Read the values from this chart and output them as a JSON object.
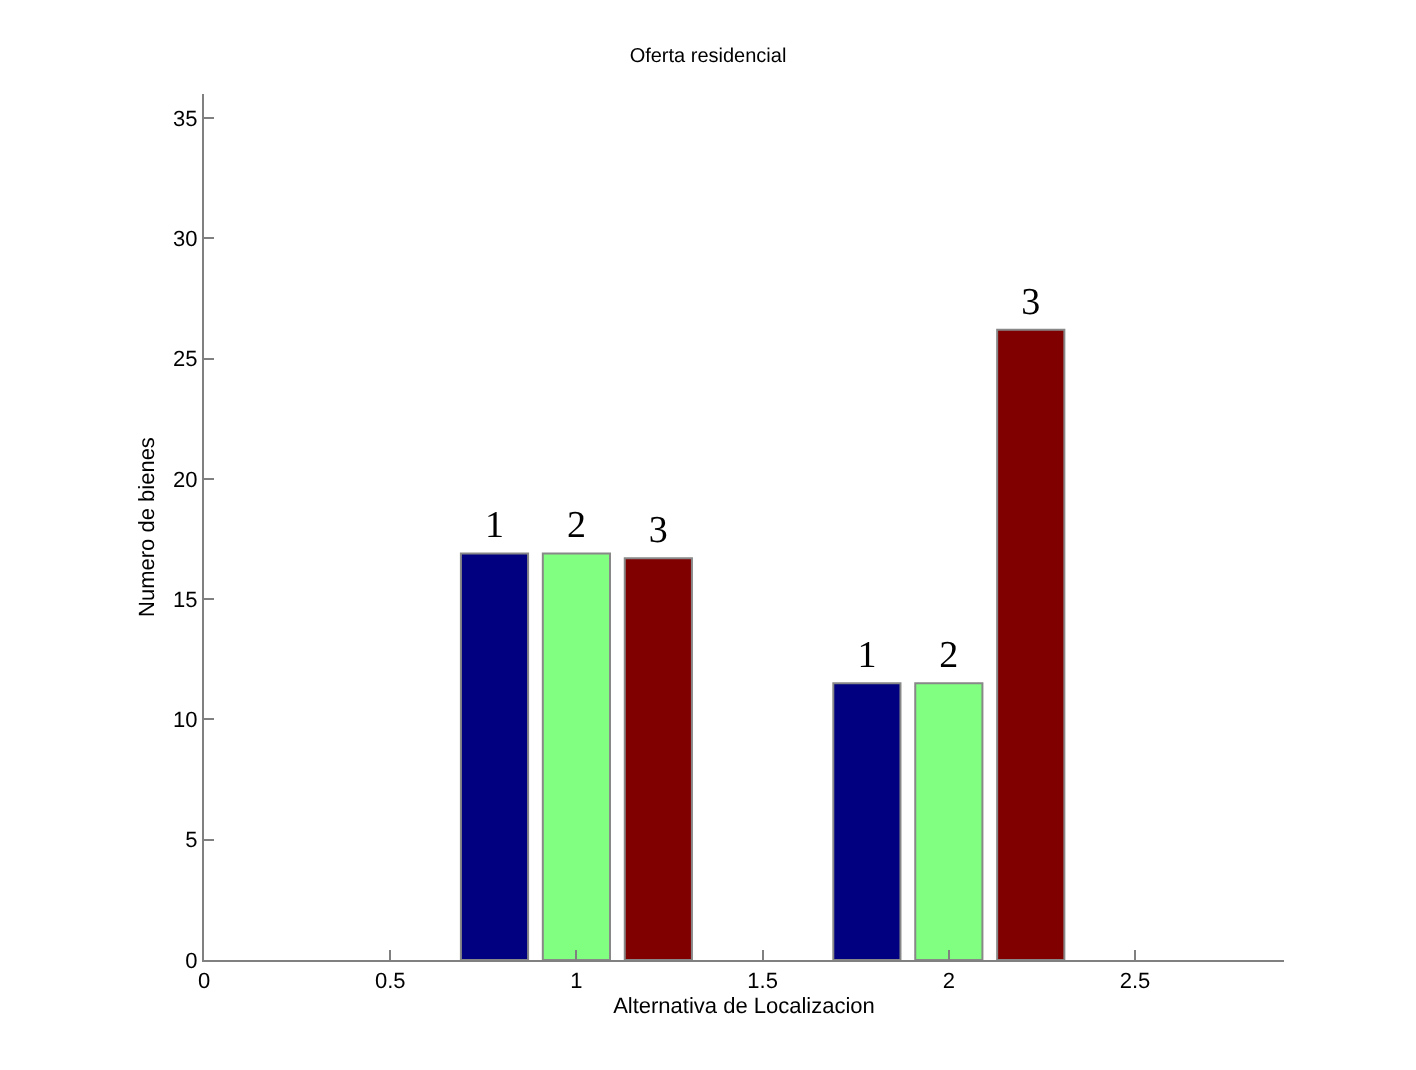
{
  "chart_data": {
    "type": "bar",
    "title": "Oferta residencial",
    "xlabel": "Alternativa de Localizacion",
    "ylabel": "Numero de bienes",
    "x": [
      1,
      2
    ],
    "series": [
      {
        "name": "1",
        "color": "#000080",
        "values": [
          16.9,
          11.5
        ]
      },
      {
        "name": "2",
        "color": "#80ff80",
        "values": [
          16.9,
          11.5
        ]
      },
      {
        "name": "3",
        "color": "#800000",
        "values": [
          16.7,
          26.2
        ]
      }
    ],
    "xlim": [
      0,
      2.9
    ],
    "xticks": [
      0,
      0.5,
      1,
      1.5,
      2,
      2.5
    ],
    "ylim": [
      0,
      36
    ],
    "yticks": [
      0,
      5,
      10,
      15,
      20,
      25,
      30,
      35
    ],
    "grid": false,
    "legend": false
  }
}
